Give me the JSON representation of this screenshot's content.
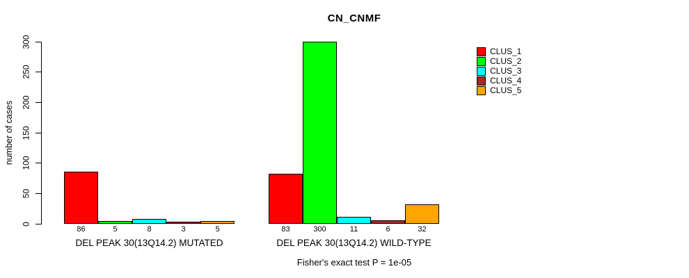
{
  "chart_data": {
    "type": "bar",
    "title": "CN_CNMF",
    "ylabel": "number of cases",
    "xlabel": "",
    "ylim": [
      0,
      300
    ],
    "yticks": [
      0,
      50,
      100,
      150,
      200,
      250,
      300
    ],
    "grid": false,
    "legend_position": "right",
    "categories": [
      "DEL PEAK 30(13Q14.2) MUTATED",
      "DEL PEAK 30(13Q14.2) WILD-TYPE"
    ],
    "series": [
      {
        "name": "CLUS_1",
        "color": "#ff0000",
        "values": [
          86,
          83
        ]
      },
      {
        "name": "CLUS_2",
        "color": "#00ff00",
        "values": [
          5,
          300
        ]
      },
      {
        "name": "CLUS_3",
        "color": "#00ffff",
        "values": [
          8,
          11
        ]
      },
      {
        "name": "CLUS_4",
        "color": "#a52a2a",
        "values": [
          3,
          6
        ]
      },
      {
        "name": "CLUS_5",
        "color": "#ffa500",
        "values": [
          5,
          32
        ]
      }
    ],
    "bar_labels": [
      [
        86,
        5,
        8,
        3,
        5
      ],
      [
        83,
        300,
        11,
        6,
        32
      ]
    ],
    "annotation": "Fisher's exact test P = 1e-05"
  },
  "colors": {
    "background": "#ffffff",
    "axis": "#000000",
    "text": "#000000"
  }
}
